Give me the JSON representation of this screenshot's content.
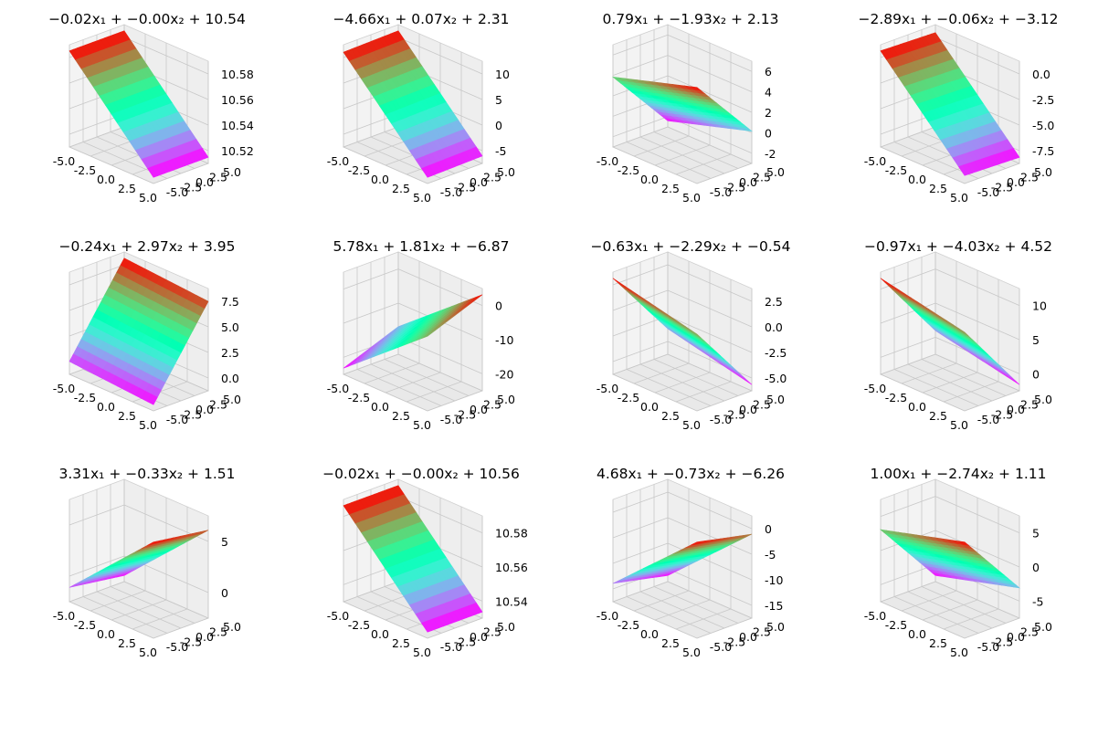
{
  "chart_data": [
    {
      "type": "surface3d",
      "title": "−0.02x₁ + −0.00x₂ + 10.54",
      "coef": [
        -0.02,
        -0.0
      ],
      "intercept": 10.54,
      "x_range": [
        -5,
        5
      ],
      "y_range": [
        -5,
        5
      ],
      "x_ticks": [
        "-5.0",
        "-2.5",
        "0.0",
        "2.5",
        "5.0"
      ],
      "y_ticks": [
        "-5.0",
        "-2.5",
        "0.0",
        "2.5",
        "5.0"
      ],
      "z_ticks": [
        "10.52",
        "10.54",
        "10.56",
        "10.58"
      ],
      "colormap": "rainbow"
    },
    {
      "type": "surface3d",
      "title": "−4.66x₁ + 0.07x₂ + 2.31",
      "coef": [
        -4.66,
        0.07
      ],
      "intercept": 2.31,
      "x_range": [
        -5,
        5
      ],
      "y_range": [
        -5,
        5
      ],
      "x_ticks": [
        "-5.0",
        "-2.5",
        "0.0",
        "2.5",
        "5.0"
      ],
      "y_ticks": [
        "-5.0",
        "-2.5",
        "0.0",
        "2.5",
        "5.0"
      ],
      "z_ticks": [
        "-5",
        "0",
        "5",
        "10"
      ],
      "colormap": "rainbow"
    },
    {
      "type": "surface3d",
      "title": "0.79x₁ + −1.93x₂ + 2.13",
      "coef": [
        0.79,
        -1.93
      ],
      "intercept": 2.13,
      "x_range": [
        -5,
        5
      ],
      "y_range": [
        -5,
        5
      ],
      "x_ticks": [
        "-5.0",
        "-2.5",
        "0.0",
        "2.5",
        "5.0"
      ],
      "y_ticks": [
        "-5.0",
        "-2.5",
        "0.0",
        "2.5",
        "5.0"
      ],
      "z_ticks": [
        "-2",
        "0",
        "2",
        "4",
        "6"
      ],
      "colormap": "rainbow"
    },
    {
      "type": "surface3d",
      "title": "−2.89x₁ + −0.06x₂ + −3.12",
      "coef": [
        -2.89,
        -0.06
      ],
      "intercept": -3.12,
      "x_range": [
        -5,
        5
      ],
      "y_range": [
        -5,
        5
      ],
      "x_ticks": [
        "-5.0",
        "-2.5",
        "0.0",
        "2.5",
        "5.0"
      ],
      "y_ticks": [
        "-5.0",
        "-2.5",
        "0.0",
        "2.5",
        "5.0"
      ],
      "z_ticks": [
        "-7.5",
        "-5.0",
        "-2.5",
        "0.0"
      ],
      "colormap": "rainbow"
    },
    {
      "type": "surface3d",
      "title": "−0.24x₁ + 2.97x₂ + 3.95",
      "coef": [
        -0.24,
        2.97
      ],
      "intercept": 3.95,
      "x_range": [
        -5,
        5
      ],
      "y_range": [
        -5,
        5
      ],
      "x_ticks": [
        "-5.0",
        "-2.5",
        "0.0",
        "2.5",
        "5.0"
      ],
      "y_ticks": [
        "-5.0",
        "-2.5",
        "0.0",
        "2.5",
        "5.0"
      ],
      "z_ticks": [
        "0.0",
        "2.5",
        "5.0",
        "7.5"
      ],
      "colormap": "rainbow"
    },
    {
      "type": "surface3d",
      "title": "5.78x₁ + 1.81x₂ + −6.87",
      "coef": [
        5.78,
        1.81
      ],
      "intercept": -6.87,
      "x_range": [
        -5,
        5
      ],
      "y_range": [
        -5,
        5
      ],
      "x_ticks": [
        "-5.0",
        "-2.5",
        "0.0",
        "2.5",
        "5.0"
      ],
      "y_ticks": [
        "-5.0",
        "-2.5",
        "0.0",
        "2.5",
        "5.0"
      ],
      "z_ticks": [
        "-20",
        "-10",
        "0"
      ],
      "colormap": "rainbow"
    },
    {
      "type": "surface3d",
      "title": "−0.63x₁ + −2.29x₂ + −0.54",
      "coef": [
        -0.63,
        -2.29
      ],
      "intercept": -0.54,
      "x_range": [
        -5,
        5
      ],
      "y_range": [
        -5,
        5
      ],
      "x_ticks": [
        "-5.0",
        "-2.5",
        "0.0",
        "2.5",
        "5.0"
      ],
      "y_ticks": [
        "-5.0",
        "-2.5",
        "0.0",
        "2.5",
        "5.0"
      ],
      "z_ticks": [
        "-5.0",
        "-2.5",
        "0.0",
        "2.5"
      ],
      "colormap": "rainbow"
    },
    {
      "type": "surface3d",
      "title": "−0.97x₁ + −4.03x₂ + 4.52",
      "coef": [
        -0.97,
        -4.03
      ],
      "intercept": 4.52,
      "x_range": [
        -5,
        5
      ],
      "y_range": [
        -5,
        5
      ],
      "x_ticks": [
        "-5.0",
        "-2.5",
        "0.0",
        "2.5",
        "5.0"
      ],
      "y_ticks": [
        "-5.0",
        "-2.5",
        "0.0",
        "2.5",
        "5.0"
      ],
      "z_ticks": [
        "0",
        "5",
        "10"
      ],
      "colormap": "rainbow"
    },
    {
      "type": "surface3d",
      "title": "3.31x₁ + −0.33x₂ + 1.51",
      "coef": [
        3.31,
        -0.33
      ],
      "intercept": 1.51,
      "x_range": [
        -5,
        5
      ],
      "y_range": [
        -5,
        5
      ],
      "x_ticks": [
        "-5.0",
        "-2.5",
        "0.0",
        "2.5",
        "5.0"
      ],
      "y_ticks": [
        "-5.0",
        "-2.5",
        "0.0",
        "2.5",
        "5.0"
      ],
      "z_ticks": [
        "0",
        "5"
      ],
      "colormap": "rainbow"
    },
    {
      "type": "surface3d",
      "title": "−0.02x₁ + −0.00x₂ + 10.56",
      "coef": [
        -0.02,
        -0.0
      ],
      "intercept": 10.56,
      "x_range": [
        -5,
        5
      ],
      "y_range": [
        -5,
        5
      ],
      "x_ticks": [
        "-5.0",
        "-2.5",
        "0.0",
        "2.5",
        "5.0"
      ],
      "y_ticks": [
        "-5.0",
        "-2.5",
        "0.0",
        "2.5",
        "5.0"
      ],
      "z_ticks": [
        "10.54",
        "10.56",
        "10.58"
      ],
      "colormap": "rainbow"
    },
    {
      "type": "surface3d",
      "title": "4.68x₁ + −0.73x₂ + −6.26",
      "coef": [
        4.68,
        -0.73
      ],
      "intercept": -6.26,
      "x_range": [
        -5,
        5
      ],
      "y_range": [
        -5,
        5
      ],
      "x_ticks": [
        "-5.0",
        "-2.5",
        "0.0",
        "2.5",
        "5.0"
      ],
      "y_ticks": [
        "-5.0",
        "-2.5",
        "0.0",
        "2.5",
        "5.0"
      ],
      "z_ticks": [
        "-15",
        "-10",
        "-5",
        "0"
      ],
      "colormap": "rainbow"
    },
    {
      "type": "surface3d",
      "title": "1.00x₁ + −2.74x₂ + 1.11",
      "coef": [
        1.0,
        -2.74
      ],
      "intercept": 1.11,
      "x_range": [
        -5,
        5
      ],
      "y_range": [
        -5,
        5
      ],
      "x_ticks": [
        "-5.0",
        "-2.5",
        "0.0",
        "2.5",
        "5.0"
      ],
      "y_ticks": [
        "-5.0",
        "-2.5",
        "0.0",
        "2.5",
        "5.0"
      ],
      "z_ticks": [
        "-5",
        "0",
        "5"
      ],
      "colormap": "rainbow"
    }
  ]
}
